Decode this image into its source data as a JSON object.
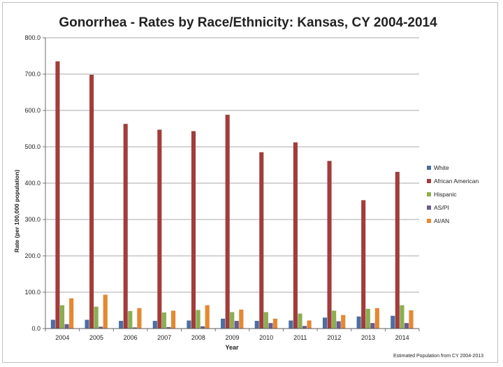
{
  "chart_data": {
    "type": "bar",
    "title": "Gonorrhea - Rates by Race/Ethnicity: Kansas, CY 2004-2014",
    "xlabel": "Year",
    "ylabel": "Rate (per 100,000 population)",
    "ylim": [
      0,
      800
    ],
    "yticks": [
      "0.0",
      "100.0",
      "200.0",
      "300.0",
      "400.0",
      "500.0",
      "600.0",
      "700.0",
      "800.0"
    ],
    "grid": true,
    "legend_position": "right",
    "footnote": "Estimated Population from CY 2004-2013",
    "categories": [
      "2004",
      "2005",
      "2006",
      "2007",
      "2008",
      "2009",
      "2010",
      "2011",
      "2012",
      "2013",
      "2014"
    ],
    "series": [
      {
        "name": "White",
        "color": "#4a6fa5",
        "values": [
          24,
          24,
          21,
          21,
          22,
          27,
          21,
          22,
          30,
          33,
          35
        ]
      },
      {
        "name": "African American",
        "color": "#a33c3a",
        "values": [
          735,
          698,
          563,
          547,
          543,
          588,
          485,
          512,
          461,
          353,
          431
        ]
      },
      {
        "name": "Hispanic",
        "color": "#8cae4f",
        "values": [
          64,
          60,
          48,
          44,
          51,
          45,
          45,
          41,
          49,
          54,
          64
        ]
      },
      {
        "name": "AS/PI",
        "color": "#6b5a93",
        "values": [
          12,
          5,
          3,
          4,
          6,
          21,
          15,
          7,
          20,
          15,
          15
        ]
      },
      {
        "name": "AI/AN",
        "color": "#e8882e",
        "values": [
          83,
          93,
          56,
          49,
          64,
          52,
          27,
          22,
          37,
          56,
          50
        ]
      }
    ]
  }
}
